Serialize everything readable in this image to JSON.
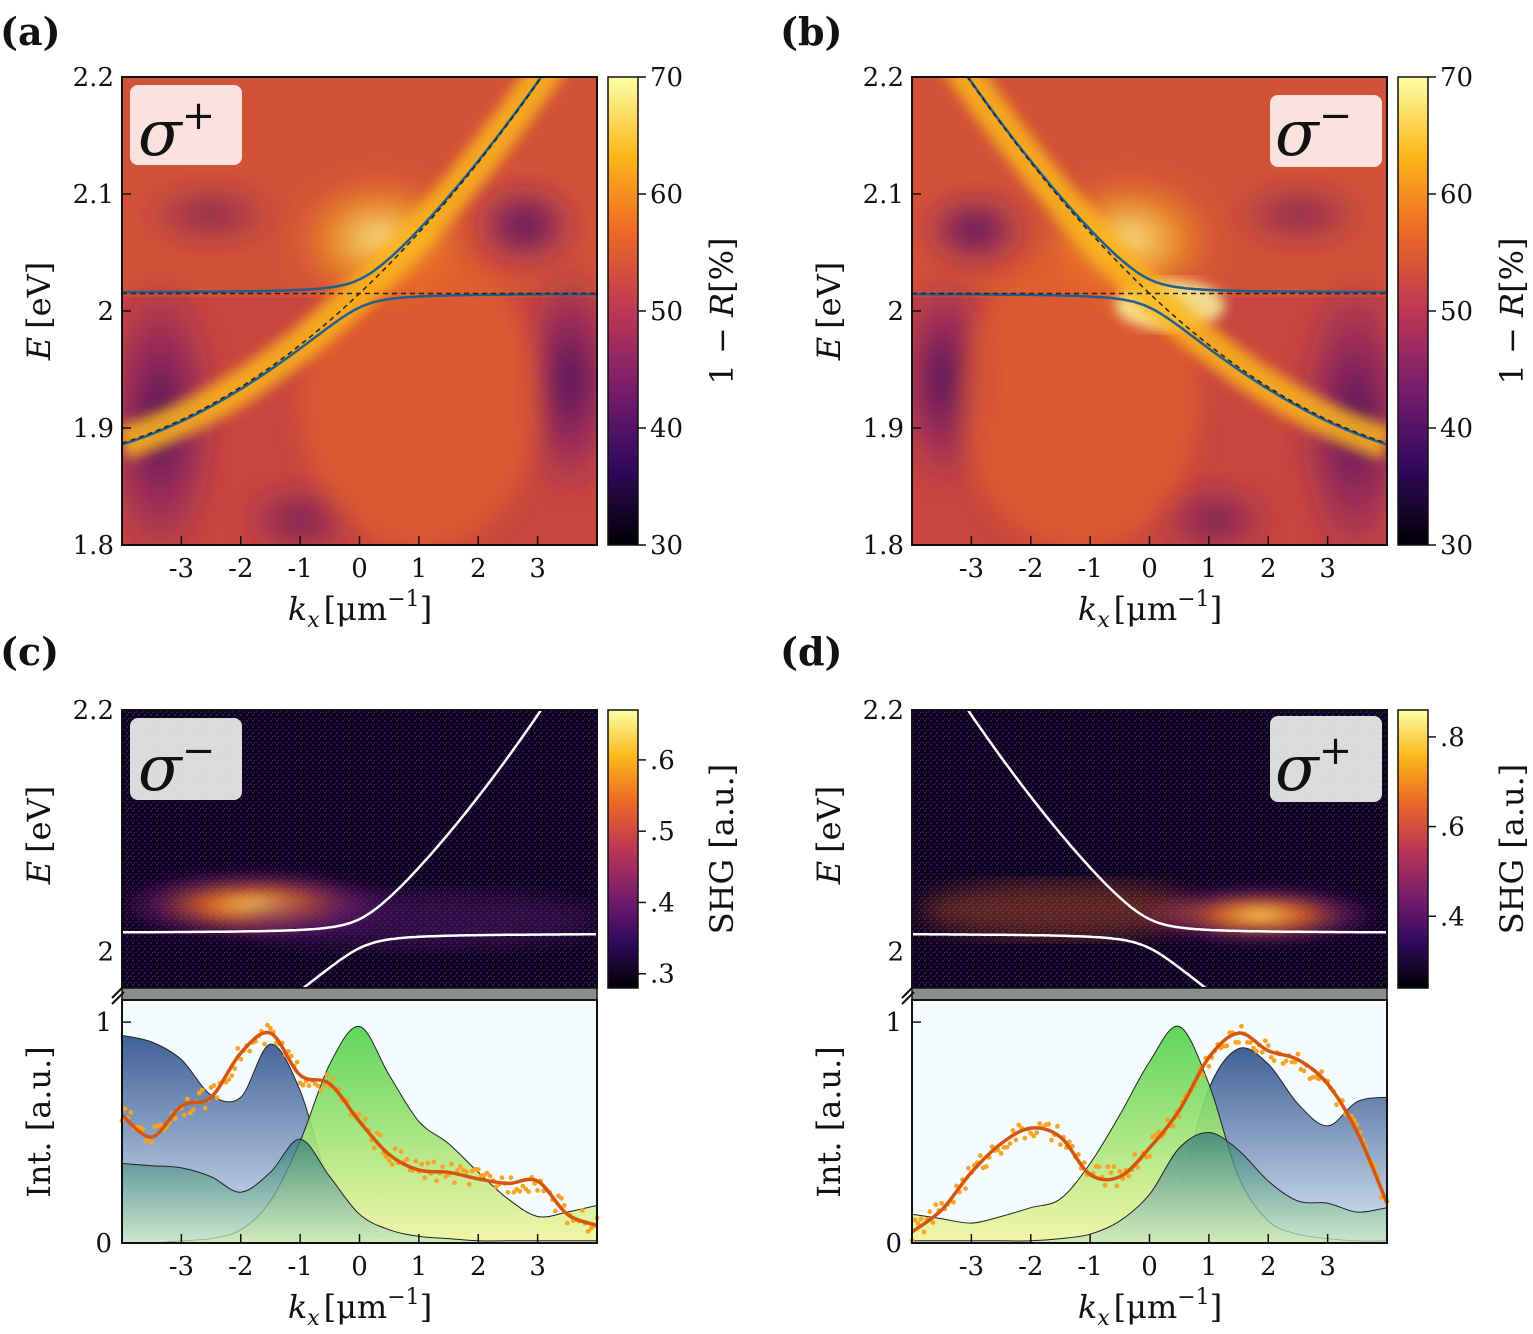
{
  "colors": {
    "inferno_0": "#000004",
    "inferno_1": "#320a5e",
    "inferno_2": "#781c6d",
    "inferno_3": "#bc3754",
    "inferno_4": "#ed6925",
    "inferno_5": "#fbb61a",
    "inferno_6": "#fcffa4",
    "polariton_line": "#1f5f8b",
    "uncoupled_line": "#222222",
    "shg_line": "#ffffff",
    "shg_points": "#f7a325",
    "shg_smooth": "#d4560d",
    "lower_fill_top": "#5a7fb0",
    "upper_fill_top": "#5fd65a",
    "bottom_fill": "#f3f5a0",
    "break_band": "#8c8c8c"
  },
  "chart_data": [
    {
      "panel": "(a)",
      "type": "heatmap",
      "polarization": "σ+",
      "xlabel_main": "k",
      "xlabel_sub": "x",
      "xlabel_unit": "[μm",
      "xlabel_sup": "−1",
      "xlabel_close": "]",
      "ylabel_main": "E",
      "ylabel_unit": "[eV]",
      "xlim": [
        -4,
        4
      ],
      "ylim": [
        1.8,
        2.2
      ],
      "xticks": [
        "-3",
        "-2",
        "-1",
        "0",
        "1",
        "2",
        "3"
      ],
      "yticks": [
        "1.8",
        "1.9",
        "2",
        "2.1",
        "2.2"
      ],
      "colorbar": {
        "label_a": "1 − ",
        "label_b": "R",
        "label_c": "[%]",
        "ticks": [
          "30",
          "40",
          "50",
          "60",
          "70"
        ],
        "range": [
          30,
          70
        ]
      },
      "exciton_energy": 2.015,
      "photon_slope": 1,
      "features": [
        {
          "name": "photon_bright_band",
          "comment": "bright yellow band along dispersing photon mode"
        }
      ]
    },
    {
      "panel": "(b)",
      "type": "heatmap",
      "polarization": "σ−",
      "xlabel_main": "k",
      "xlabel_sub": "x",
      "xlabel_unit": "[μm",
      "xlabel_sup": "−1",
      "xlabel_close": "]",
      "ylabel_main": "E",
      "ylabel_unit": "[eV]",
      "xlim": [
        -4,
        4
      ],
      "ylim": [
        1.8,
        2.2
      ],
      "xticks": [
        "-3",
        "-2",
        "-1",
        "0",
        "1",
        "2",
        "3"
      ],
      "yticks": [
        "1.8",
        "1.9",
        "2",
        "2.1",
        "2.2"
      ],
      "colorbar": {
        "label_a": "1 − ",
        "label_b": "R",
        "label_c": "[%]",
        "ticks": [
          "30",
          "40",
          "50",
          "60",
          "70"
        ],
        "range": [
          30,
          70
        ]
      },
      "exciton_energy": 2.015,
      "photon_slope": -1
    },
    {
      "panel": "(c)",
      "type": "heatmap",
      "polarization": "σ−",
      "ylabel_main": "E",
      "ylabel_unit": "[eV]",
      "xlim": [
        -4,
        4
      ],
      "ylim": [
        1.97,
        2.2
      ],
      "yticks": [
        "2",
        "2.2"
      ],
      "colorbar": {
        "label": "SHG [a.u.]",
        "ticks": [
          ".3",
          ".4",
          ".5",
          ".6"
        ],
        "range": [
          0.28,
          0.67
        ]
      },
      "photon_slope": 1
    },
    {
      "panel": "(d)",
      "type": "heatmap",
      "polarization": "σ+",
      "ylabel_main": "E",
      "ylabel_unit": "[eV]",
      "xlim": [
        -4,
        4
      ],
      "ylim": [
        1.97,
        2.2
      ],
      "yticks": [
        "2",
        "2.2"
      ],
      "colorbar": {
        "label": "SHG [a.u.]",
        "ticks": [
          ".4",
          ".6",
          ".8"
        ],
        "range": [
          0.24,
          0.86
        ]
      },
      "photon_slope": -1
    },
    {
      "panel": "(c) lower",
      "type": "area",
      "ylabel": "Int. [a.u.]",
      "xlabel_main": "k",
      "xlabel_sub": "x",
      "xlabel_unit": "[μm",
      "xlabel_sup": "−1",
      "xlabel_close": "]",
      "xlim": [
        -4,
        4
      ],
      "ylim": [
        0,
        1.1
      ],
      "xticks": [
        "-3",
        "-2",
        "-1",
        "0",
        "1",
        "2",
        "3"
      ],
      "yticks": [
        "0",
        "1"
      ],
      "x": [
        -4,
        -3.5,
        -3,
        -2.5,
        -2,
        -1.5,
        -1,
        -0.5,
        0,
        0.5,
        1,
        1.5,
        2,
        2.5,
        3,
        3.5,
        4
      ],
      "series": [
        {
          "role": "lower_polariton",
          "values": [
            0.94,
            0.91,
            0.83,
            0.67,
            0.66,
            0.9,
            0.69,
            0.26,
            0.08,
            0.02,
            0.01,
            0,
            0,
            0,
            0,
            0,
            0
          ]
        },
        {
          "role": "upper_polariton",
          "values": [
            0.0,
            0.0,
            0.01,
            0.02,
            0.06,
            0.19,
            0.46,
            0.81,
            0.98,
            0.76,
            0.55,
            0.45,
            0.32,
            0.2,
            0.12,
            0.14,
            0.17
          ]
        },
        {
          "role": "bottom_band",
          "values": [
            0.36,
            0.35,
            0.34,
            0.3,
            0.23,
            0.32,
            0.47,
            0.3,
            0.13,
            0.06,
            0.03,
            0.02,
            0.01,
            0.01,
            0.01,
            0.01,
            0.01
          ]
        },
        {
          "role": "shg_smoothed",
          "values": [
            0.58,
            0.48,
            0.62,
            0.66,
            0.86,
            0.95,
            0.76,
            0.72,
            0.55,
            0.4,
            0.33,
            0.32,
            0.29,
            0.27,
            0.28,
            0.13,
            0.08
          ]
        }
      ]
    },
    {
      "panel": "(d) lower",
      "type": "area",
      "ylabel": "Int. [a.u.]",
      "xlabel_main": "k",
      "xlabel_sub": "x",
      "xlabel_unit": "[μm",
      "xlabel_sup": "−1",
      "xlabel_close": "]",
      "xlim": [
        -4,
        4
      ],
      "ylim": [
        0,
        1.1
      ],
      "xticks": [
        "-3",
        "-2",
        "-1",
        "0",
        "1",
        "2",
        "3"
      ],
      "yticks": [
        "0",
        "1"
      ],
      "x": [
        -4,
        -3.5,
        -3,
        -2.5,
        -2,
        -1.5,
        -1,
        -0.5,
        0,
        0.5,
        1,
        1.5,
        2,
        2.5,
        3,
        3.5,
        4
      ],
      "series": [
        {
          "role": "lower_polariton",
          "values": [
            0,
            0,
            0,
            0,
            0,
            0,
            0.01,
            0.02,
            0.05,
            0.25,
            0.7,
            0.88,
            0.81,
            0.63,
            0.53,
            0.64,
            0.66
          ]
        },
        {
          "role": "upper_polariton",
          "values": [
            0.13,
            0.11,
            0.09,
            0.12,
            0.16,
            0.2,
            0.36,
            0.58,
            0.82,
            0.98,
            0.72,
            0.3,
            0.1,
            0.04,
            0.02,
            0.01,
            0.01
          ]
        },
        {
          "role": "bottom_band",
          "values": [
            0.01,
            0.01,
            0.01,
            0.01,
            0.01,
            0.02,
            0.04,
            0.1,
            0.22,
            0.43,
            0.5,
            0.42,
            0.28,
            0.19,
            0.18,
            0.14,
            0.16
          ]
        },
        {
          "role": "shg_smoothed",
          "values": [
            0.05,
            0.15,
            0.32,
            0.45,
            0.52,
            0.48,
            0.31,
            0.3,
            0.43,
            0.6,
            0.84,
            0.95,
            0.87,
            0.83,
            0.72,
            0.5,
            0.18
          ]
        }
      ]
    }
  ],
  "labels": {
    "panel_a": "(a)",
    "panel_b": "(b)",
    "panel_c": "(c)",
    "panel_d": "(d)",
    "sigma_a": "σ",
    "sup_a": "+",
    "sigma_b": "σ",
    "sup_b": "−",
    "sigma_c": "σ",
    "sup_c": "−",
    "sigma_d": "σ",
    "sup_d": "+"
  }
}
